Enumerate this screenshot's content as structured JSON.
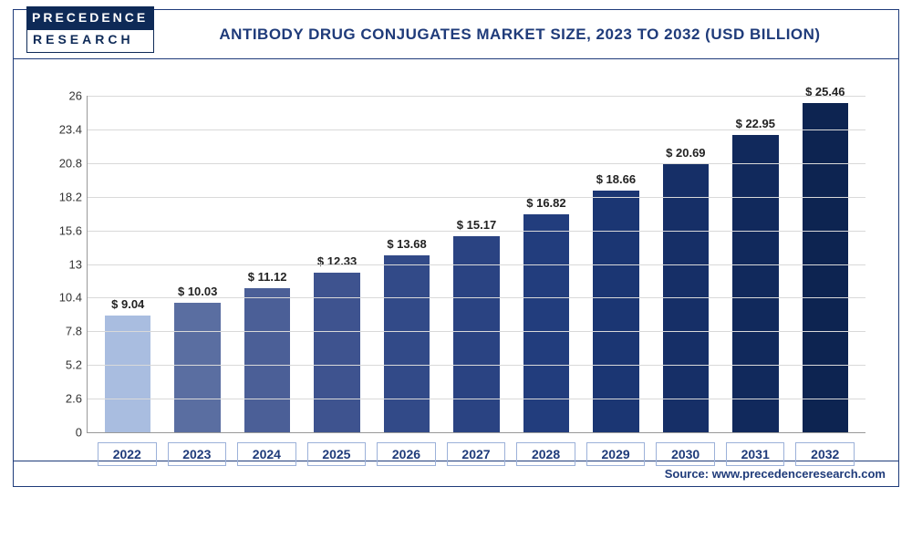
{
  "logo": {
    "top": "PRECEDENCE",
    "bottom": "RESEARCH"
  },
  "title": "ANTIBODY DRUG CONJUGATES MARKET SIZE, 2023 TO 2032 (USD BILLION)",
  "source": "Source: www.precedenceresearch.com",
  "chart": {
    "type": "bar",
    "categories": [
      "2022",
      "2023",
      "2024",
      "2025",
      "2026",
      "2027",
      "2028",
      "2029",
      "2030",
      "2031",
      "2032"
    ],
    "values": [
      9.04,
      10.03,
      11.12,
      12.33,
      13.68,
      15.17,
      16.82,
      18.66,
      20.69,
      22.95,
      25.46
    ],
    "value_labels": [
      "$ 9.04",
      "$ 10.03",
      "$ 11.12",
      "$ 12.33",
      "$ 13.68",
      "$ 15.17",
      "$ 16.82",
      "$ 18.66",
      "$ 20.69",
      "$ 22.95",
      "$ 25.46"
    ],
    "bar_colors": [
      "#a9bde0",
      "#5a6ea1",
      "#4b5f97",
      "#3e538f",
      "#324a88",
      "#2a4382",
      "#223d7d",
      "#1b3673",
      "#162f67",
      "#11295c",
      "#0d2451"
    ],
    "background_color": "#ffffff",
    "grid_color": "#d9d9d9",
    "axis_color": "#999999",
    "ylim": [
      0,
      26
    ],
    "ytick_step": 2.6,
    "ytick_labels": [
      "0",
      "2.6",
      "5.2",
      "7.8",
      "10.4",
      "13",
      "15.6",
      "18.2",
      "20.8",
      "23.4",
      "26"
    ],
    "bar_width": 0.66,
    "label_fontsize": 13,
    "title_fontsize": 17,
    "title_color": "#1f3b7a",
    "xlabel_border_color": "#9cb1d9"
  }
}
